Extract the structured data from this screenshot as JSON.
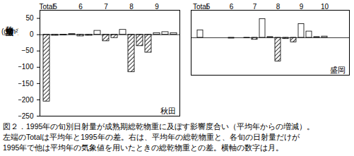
{
  "chart_data": [
    {
      "type": "bar",
      "annotation": "秋田",
      "categories": [
        "Total",
        "5",
        null,
        null,
        "6",
        null,
        null,
        "7",
        null,
        null,
        "8",
        null,
        null,
        "9",
        null,
        null
      ],
      "values": [
        -205,
        -3,
        -2,
        2,
        -5,
        -3,
        12,
        -20,
        -10,
        15,
        -115,
        -35,
        -55,
        5,
        8,
        5
      ],
      "color": "#000000",
      "ylim": [
        -250,
        75
      ],
      "yticks": [
        50,
        0,
        -50,
        -100,
        -150,
        -200,
        -250
      ],
      "ylabel": [
        "乾物増減量",
        "(g/m²)"
      ]
    },
    {
      "type": "bar",
      "annotation": "盛岡",
      "categories": [
        "Total",
        "5",
        null,
        null,
        "6",
        null,
        null,
        "7",
        null,
        null,
        "8",
        null,
        null,
        "9",
        null,
        null,
        "10",
        null,
        null
      ],
      "values": [
        30,
        0,
        0,
        0,
        -3,
        0,
        -2,
        -8,
        75,
        3,
        -95,
        -5,
        -18,
        55,
        25,
        3,
        5,
        0,
        0
      ],
      "color": "#000000",
      "ylim": [
        -150,
        110
      ],
      "yticks": [],
      "tick_labels": "x"
    }
  ],
  "caption": [
    "図２．1995年の旬別日射量が成熟期総乾物重に及ぼす影響度合い（平均年からの増減）。",
    "左端のTotalは平均年と1995年の差。右は、平均年の総乾物重と、各旬の日射量だけが",
    "1995年で他は平均年の気象値を用いたときの総乾物重との差。横軸の数字は月。"
  ]
}
